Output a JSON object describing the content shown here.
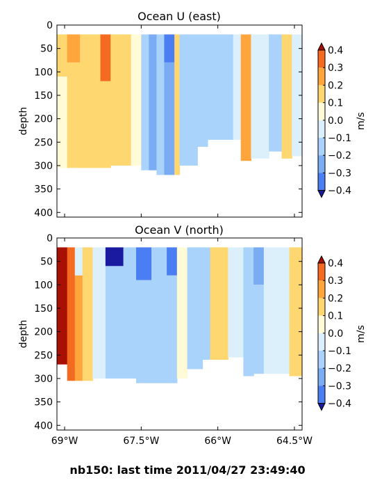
{
  "figure": {
    "suptitle": "nb150: last time 2011/04/27 23:49:40"
  },
  "colormap": {
    "levels": [
      -0.4,
      -0.3,
      -0.2,
      -0.1,
      0.0,
      0.1,
      0.2,
      0.3,
      0.4
    ],
    "colors": [
      "#2a4df0",
      "#4a7ef2",
      "#79acf2",
      "#a9d3fb",
      "#dcf0fb",
      "#fffbd6",
      "#ffd770",
      "#ffa53c",
      "#f36a20",
      "#c8170f"
    ],
    "under_color": "#1a1aa0",
    "over_color": "#a81006"
  },
  "chart_data": [
    {
      "type": "heatmap",
      "title": "Ocean U (east)",
      "ylabel": "depth",
      "xlabel": "",
      "x_ticks": [
        "69°W",
        "67.5°W",
        "66°W",
        "64.5°W"
      ],
      "x_tick_values": [
        -69.0,
        -67.5,
        -66.0,
        -64.5
      ],
      "xlim": [
        -69.15,
        -64.35
      ],
      "ylim": [
        410,
        0
      ],
      "y_ticks": [
        0,
        50,
        100,
        150,
        200,
        250,
        300,
        350,
        400
      ],
      "colorbar": {
        "label": "m/s",
        "tick_labels": [
          "0.4",
          "0.3",
          "0.2",
          "0.1",
          "0.0",
          "−0.1",
          "−0.2",
          "−0.3",
          "−0.4"
        ]
      },
      "columns": [
        {
          "x0": -69.15,
          "x1": -68.95,
          "bottom": 305,
          "bands": [
            [
              20,
              110,
              0.15
            ],
            [
              110,
              305,
              0.05
            ]
          ]
        },
        {
          "x0": -68.95,
          "x1": -68.7,
          "bottom": 305,
          "bands": [
            [
              20,
              80,
              0.22
            ],
            [
              80,
              305,
              0.17
            ]
          ]
        },
        {
          "x0": -68.7,
          "x1": -68.3,
          "bottom": 305,
          "bands": [
            [
              20,
              305,
              0.16
            ]
          ]
        },
        {
          "x0": -68.3,
          "x1": -68.1,
          "bottom": 305,
          "bands": [
            [
              20,
              120,
              0.32
            ],
            [
              120,
              305,
              0.18
            ]
          ]
        },
        {
          "x0": -68.1,
          "x1": -67.7,
          "bottom": 300,
          "bands": [
            [
              20,
              300,
              0.15
            ]
          ]
        },
        {
          "x0": -67.7,
          "x1": -67.5,
          "bottom": 300,
          "bands": [
            [
              20,
              300,
              0.05
            ]
          ]
        },
        {
          "x0": -67.5,
          "x1": -67.35,
          "bottom": 310,
          "bands": [
            [
              20,
              310,
              -0.12
            ]
          ]
        },
        {
          "x0": -67.35,
          "x1": -67.2,
          "bottom": 310,
          "bands": [
            [
              20,
              310,
              -0.22
            ]
          ]
        },
        {
          "x0": -67.2,
          "x1": -67.05,
          "bottom": 320,
          "bands": [
            [
              20,
              320,
              -0.17
            ]
          ]
        },
        {
          "x0": -67.05,
          "x1": -66.85,
          "bottom": 320,
          "bands": [
            [
              20,
              80,
              -0.4
            ],
            [
              80,
              320,
              -0.27
            ]
          ]
        },
        {
          "x0": -66.85,
          "x1": -66.75,
          "bottom": 320,
          "bands": [
            [
              20,
              320,
              0.17
            ]
          ]
        },
        {
          "x0": -66.75,
          "x1": -66.4,
          "bottom": 300,
          "bands": [
            [
              20,
              300,
              -0.12
            ]
          ]
        },
        {
          "x0": -66.4,
          "x1": -66.2,
          "bottom": 260,
          "bands": [
            [
              20,
              260,
              -0.15
            ]
          ]
        },
        {
          "x0": -66.2,
          "x1": -65.7,
          "bottom": 245,
          "bands": [
            [
              20,
              245,
              -0.15
            ]
          ]
        },
        {
          "x0": -65.7,
          "x1": -65.55,
          "bottom": 245,
          "bands": [
            [
              20,
              245,
              -0.05
            ]
          ]
        },
        {
          "x0": -65.55,
          "x1": -65.35,
          "bottom": 290,
          "bands": [
            [
              20,
              290,
              0.25
            ]
          ]
        },
        {
          "x0": -65.35,
          "x1": -65.0,
          "bottom": 285,
          "bands": [
            [
              20,
              285,
              -0.05
            ]
          ]
        },
        {
          "x0": -65.0,
          "x1": -64.75,
          "bottom": 270,
          "bands": [
            [
              20,
              270,
              -0.12
            ]
          ]
        },
        {
          "x0": -64.75,
          "x1": -64.55,
          "bottom": 285,
          "bands": [
            [
              20,
              285,
              0.18
            ]
          ]
        },
        {
          "x0": -64.55,
          "x1": -64.35,
          "bottom": 280,
          "bands": [
            [
              20,
              280,
              -0.05
            ]
          ]
        }
      ]
    },
    {
      "type": "heatmap",
      "title": "Ocean V (north)",
      "ylabel": "depth",
      "xlabel": "",
      "x_ticks": [
        "69°W",
        "67.5°W",
        "66°W",
        "64.5°W"
      ],
      "x_tick_values": [
        -69.0,
        -67.5,
        -66.0,
        -64.5
      ],
      "xlim": [
        -69.15,
        -64.35
      ],
      "ylim": [
        410,
        0
      ],
      "y_ticks": [
        0,
        50,
        100,
        150,
        200,
        250,
        300,
        350,
        400
      ],
      "colorbar": {
        "label": "m/s",
        "tick_labels": [
          "0.4",
          "0.3",
          "0.2",
          "0.1",
          "0.0",
          "−0.1",
          "−0.2",
          "−0.3",
          "−0.4"
        ]
      },
      "columns": [
        {
          "x0": -69.15,
          "x1": -68.95,
          "bottom": 270,
          "bands": [
            [
              20,
              270,
              0.45
            ]
          ]
        },
        {
          "x0": -68.95,
          "x1": -68.8,
          "bottom": 305,
          "bands": [
            [
              20,
              305,
              0.35
            ]
          ]
        },
        {
          "x0": -68.8,
          "x1": -68.65,
          "bottom": 305,
          "bands": [
            [
              20,
              80,
              -0.05
            ],
            [
              80,
              305,
              0.25
            ]
          ]
        },
        {
          "x0": -68.65,
          "x1": -68.45,
          "bottom": 305,
          "bands": [
            [
              20,
              305,
              0.1
            ]
          ]
        },
        {
          "x0": -68.45,
          "x1": -68.2,
          "bottom": 300,
          "bands": [
            [
              20,
              300,
              -0.05
            ]
          ]
        },
        {
          "x0": -68.2,
          "x1": -67.85,
          "bottom": 300,
          "bands": [
            [
              20,
              60,
              -0.45
            ],
            [
              60,
              300,
              -0.15
            ]
          ]
        },
        {
          "x0": -67.85,
          "x1": -67.6,
          "bottom": 300,
          "bands": [
            [
              20,
              300,
              -0.12
            ]
          ]
        },
        {
          "x0": -67.6,
          "x1": -67.3,
          "bottom": 310,
          "bands": [
            [
              20,
              90,
              -0.35
            ],
            [
              90,
              310,
              -0.18
            ]
          ]
        },
        {
          "x0": -67.3,
          "x1": -67.0,
          "bottom": 310,
          "bands": [
            [
              20,
              310,
              -0.15
            ]
          ]
        },
        {
          "x0": -67.0,
          "x1": -66.8,
          "bottom": 310,
          "bands": [
            [
              20,
              80,
              -0.35
            ],
            [
              80,
              310,
              -0.12
            ]
          ]
        },
        {
          "x0": -66.8,
          "x1": -66.6,
          "bottom": 300,
          "bands": [
            [
              20,
              300,
              0.05
            ]
          ]
        },
        {
          "x0": -66.6,
          "x1": -66.3,
          "bottom": 280,
          "bands": [
            [
              20,
              280,
              -0.12
            ]
          ]
        },
        {
          "x0": -66.3,
          "x1": -66.15,
          "bottom": 260,
          "bands": [
            [
              20,
              260,
              -0.2
            ]
          ]
        },
        {
          "x0": -66.15,
          "x1": -65.8,
          "bottom": 260,
          "bands": [
            [
              20,
              260,
              0.15
            ]
          ]
        },
        {
          "x0": -65.8,
          "x1": -65.5,
          "bottom": 255,
          "bands": [
            [
              20,
              255,
              -0.1
            ]
          ]
        },
        {
          "x0": -65.5,
          "x1": -65.3,
          "bottom": 295,
          "bands": [
            [
              20,
              295,
              -0.15
            ]
          ]
        },
        {
          "x0": -65.3,
          "x1": -65.1,
          "bottom": 290,
          "bands": [
            [
              20,
              100,
              -0.25
            ],
            [
              100,
              290,
              -0.15
            ]
          ]
        },
        {
          "x0": -65.1,
          "x1": -64.6,
          "bottom": 290,
          "bands": [
            [
              20,
              290,
              -0.1
            ]
          ]
        },
        {
          "x0": -64.6,
          "x1": -64.35,
          "bottom": 295,
          "bands": [
            [
              20,
              295,
              0.15
            ]
          ]
        }
      ]
    }
  ]
}
